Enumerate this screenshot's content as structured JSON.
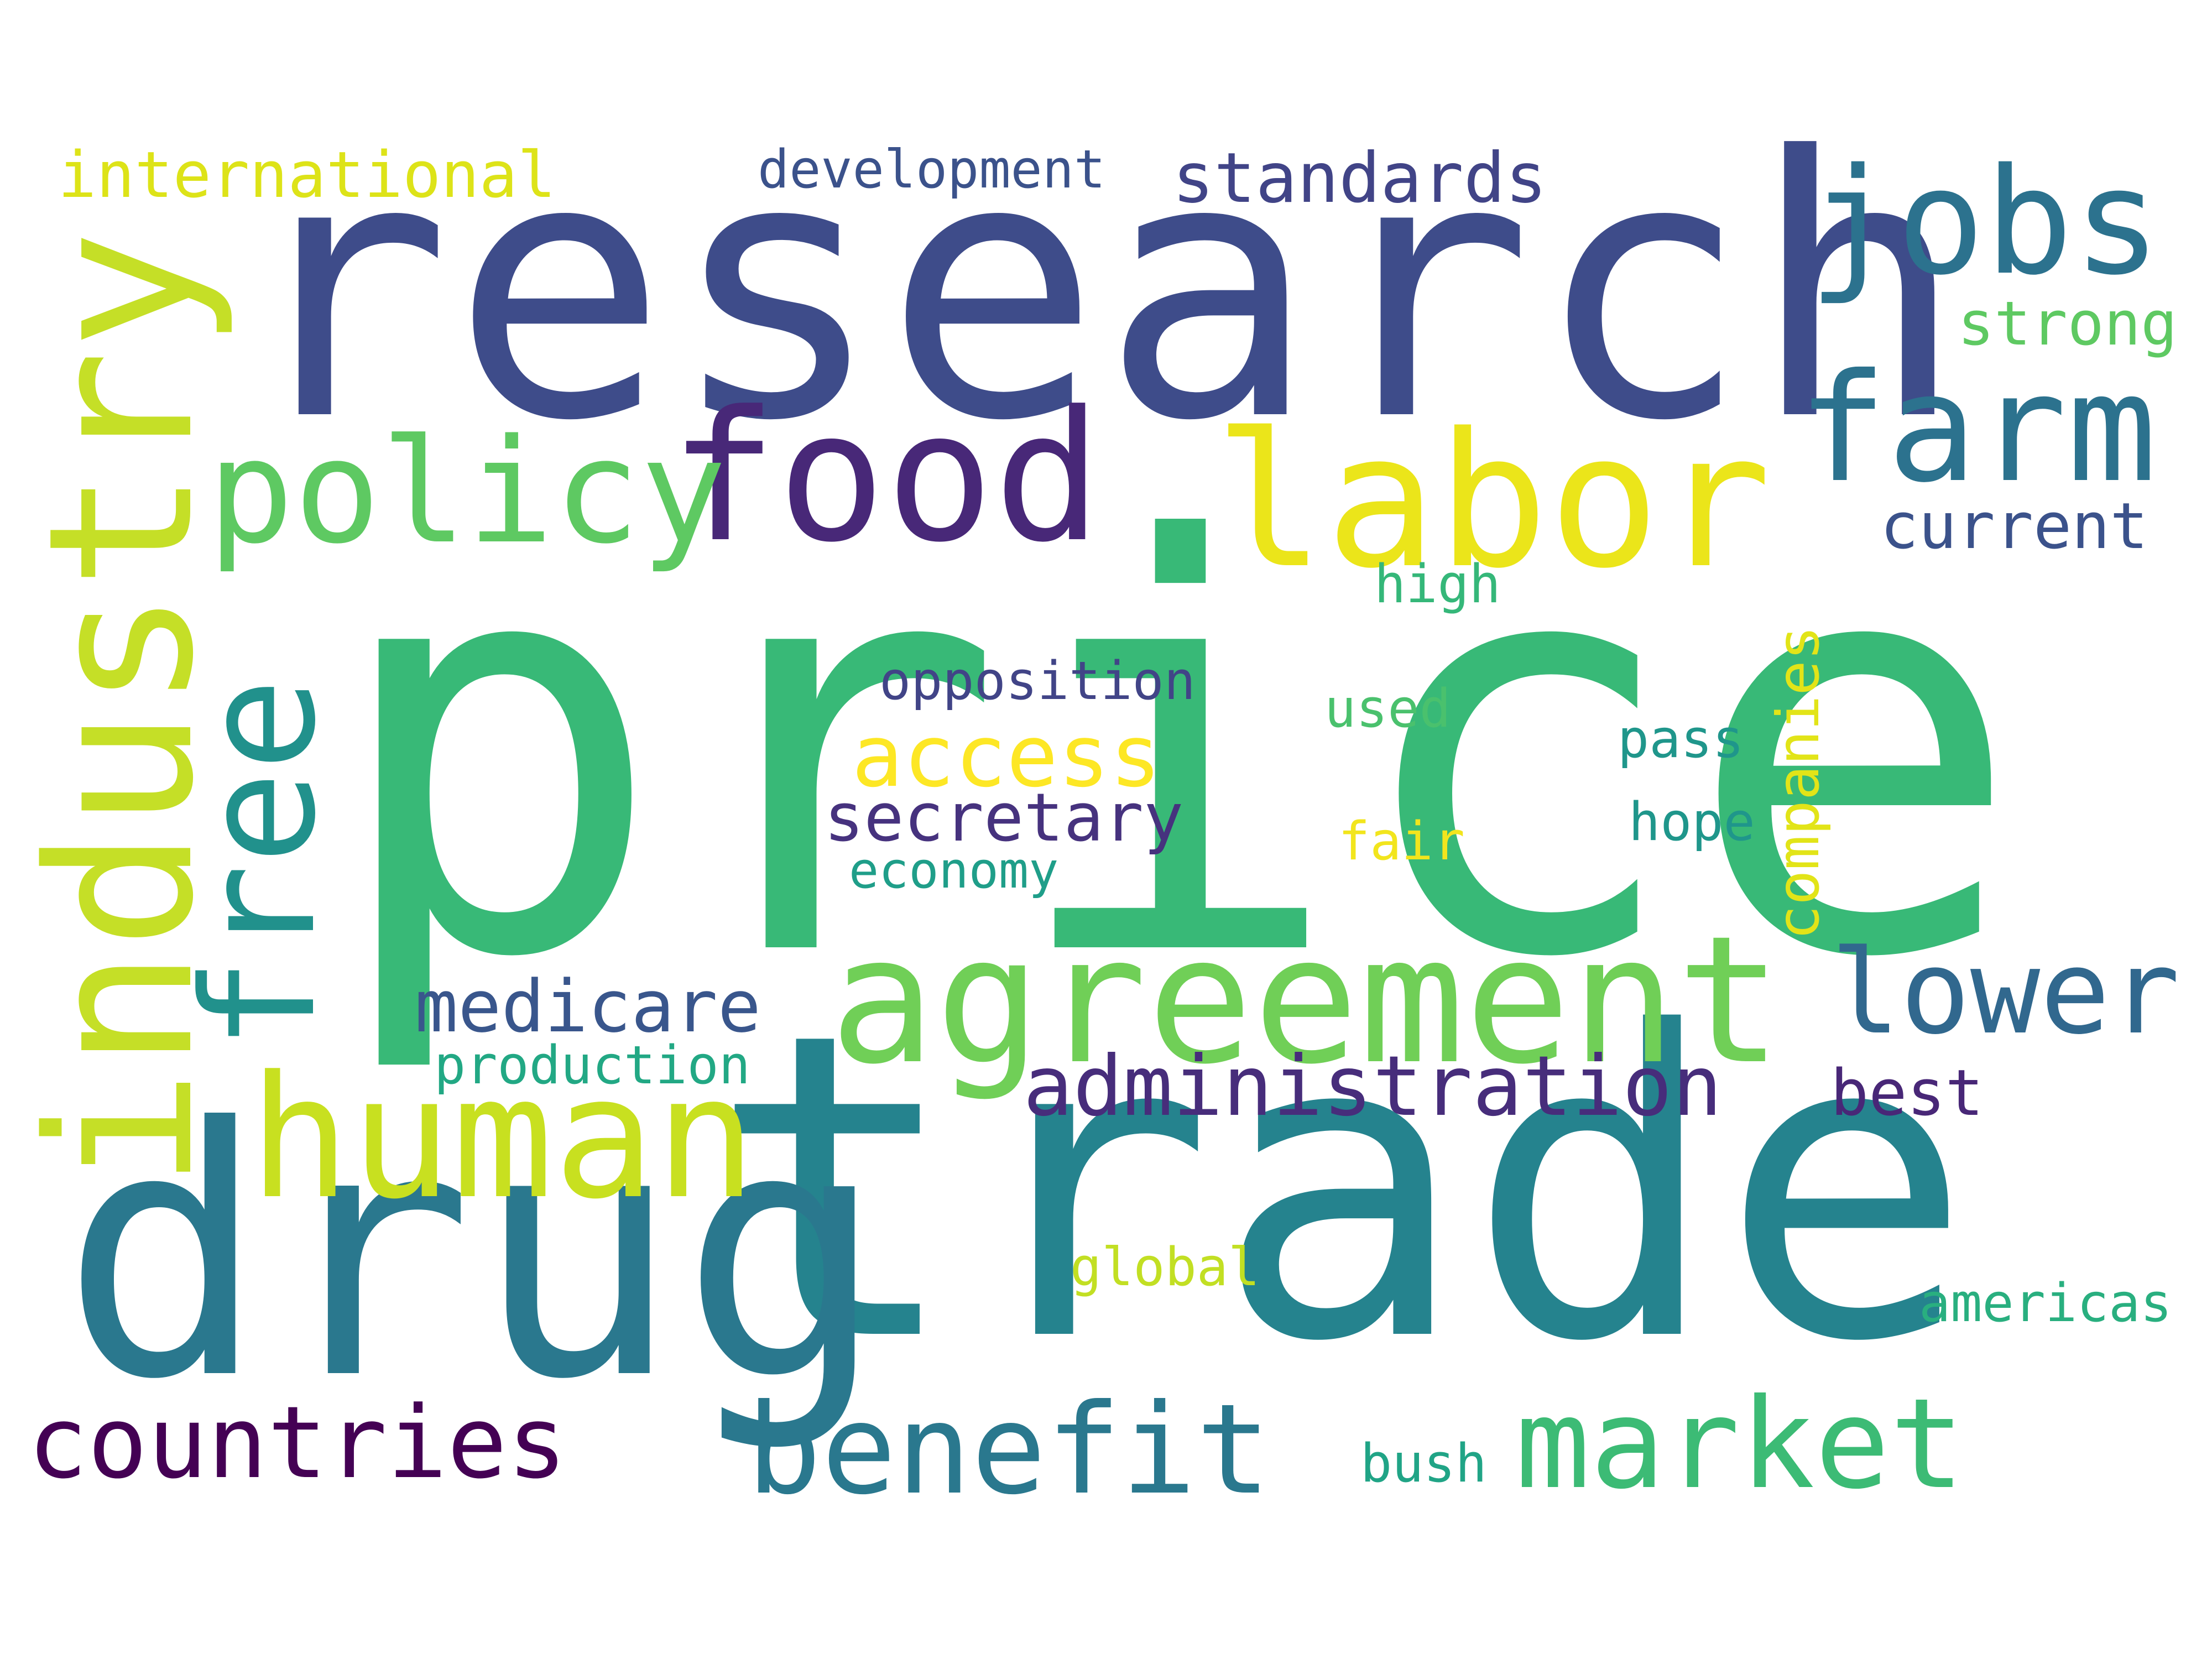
{
  "words": [
    {
      "text": "price",
      "color": "#38b977"
    },
    {
      "text": "trade",
      "color": "#25838e"
    },
    {
      "text": "research",
      "color": "#3e4c8a"
    },
    {
      "text": "drug",
      "color": "#2a788e"
    },
    {
      "text": "industry",
      "color": "#c5df27"
    },
    {
      "text": "agreement",
      "color": "#70cf57"
    },
    {
      "text": "human",
      "color": "#c8e020"
    },
    {
      "text": "labor",
      "color": "#ebe51a"
    },
    {
      "text": "food",
      "color": "#482878"
    },
    {
      "text": "free",
      "color": "#21918c"
    },
    {
      "text": "policy",
      "color": "#5ec962"
    },
    {
      "text": "farm",
      "color": "#2c728e"
    },
    {
      "text": "jobs",
      "color": "#2c728e"
    },
    {
      "text": "lower",
      "color": "#31688e"
    },
    {
      "text": "market",
      "color": "#3cbb75"
    },
    {
      "text": "benefit",
      "color": "#2a788e"
    },
    {
      "text": "countries",
      "color": "#440154"
    },
    {
      "text": "administration",
      "color": "#472d7b"
    },
    {
      "text": "access",
      "color": "#fde725"
    },
    {
      "text": "medicare",
      "color": "#39568c"
    },
    {
      "text": "secretary",
      "color": "#46327e"
    },
    {
      "text": "standards",
      "color": "#414487"
    },
    {
      "text": "international",
      "color": "#dde318"
    },
    {
      "text": "current",
      "color": "#3b528b"
    },
    {
      "text": "companies",
      "color": "#e2e418"
    },
    {
      "text": "best",
      "color": "#482777"
    },
    {
      "text": "development",
      "color": "#3b528b"
    },
    {
      "text": "opposition",
      "color": "#414487"
    },
    {
      "text": "strong",
      "color": "#5ec962"
    },
    {
      "text": "production",
      "color": "#22a884"
    },
    {
      "text": "economy",
      "color": "#1f9e89"
    },
    {
      "text": "americas",
      "color": "#29af7f"
    },
    {
      "text": "high",
      "color": "#35b779"
    },
    {
      "text": "used",
      "color": "#4ac16d"
    },
    {
      "text": "pass",
      "color": "#1f968b"
    },
    {
      "text": "hope",
      "color": "#1f968b"
    },
    {
      "text": "fair",
      "color": "#f2e51d"
    },
    {
      "text": "global",
      "color": "#c2df23"
    },
    {
      "text": "bush",
      "color": "#20a486"
    }
  ]
}
